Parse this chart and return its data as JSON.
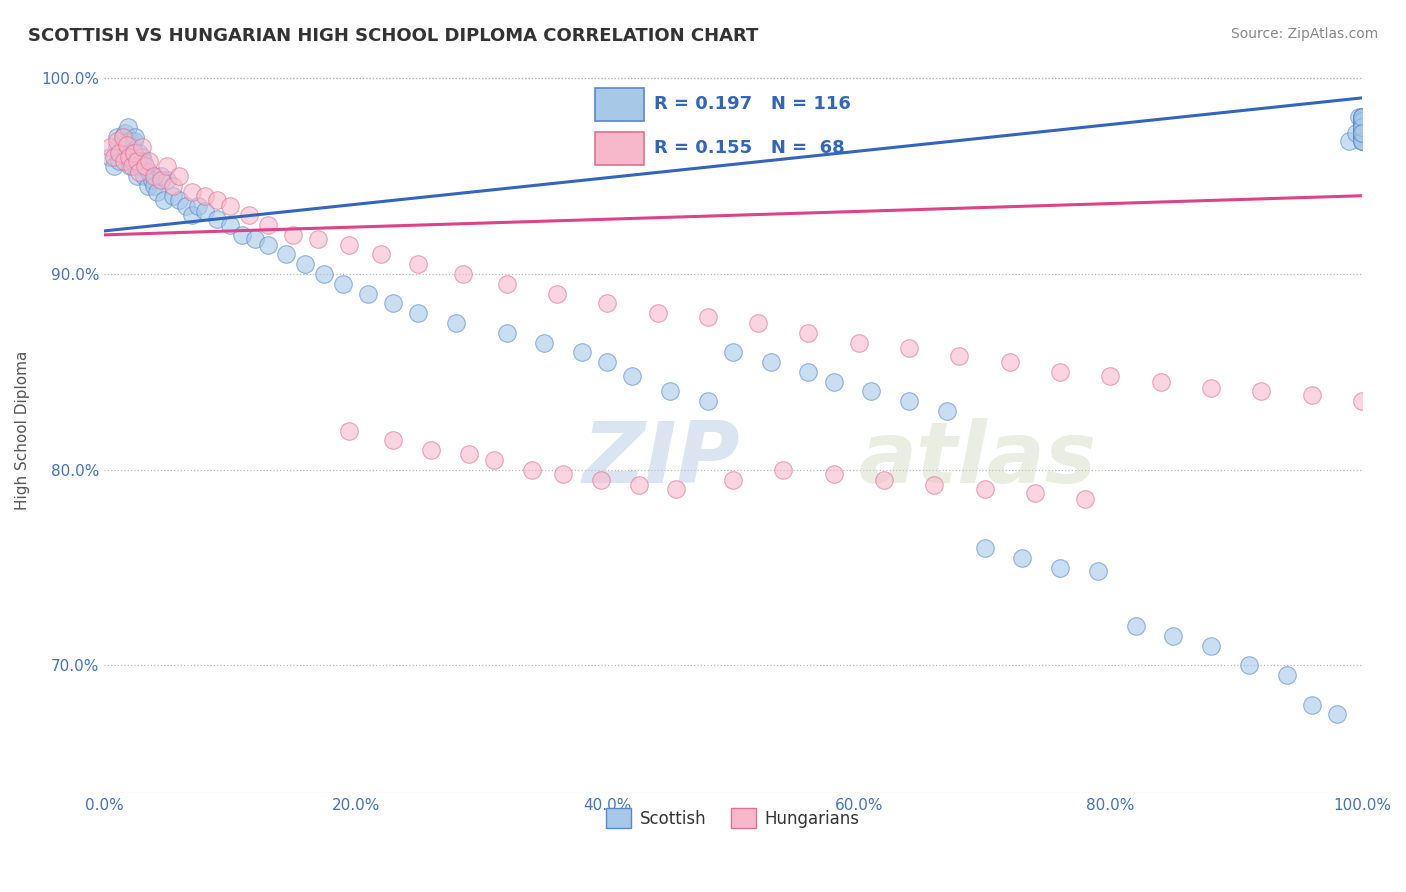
{
  "title": "SCOTTISH VS HUNGARIAN HIGH SCHOOL DIPLOMA CORRELATION CHART",
  "source": "Source: ZipAtlas.com",
  "ylabel": "High School Diploma",
  "xlim": [
    0.0,
    1.0
  ],
  "ylim": [
    0.635,
    1.005
  ],
  "xticks": [
    0.0,
    0.2,
    0.4,
    0.6,
    0.8,
    1.0
  ],
  "xticklabels": [
    "0.0%",
    "20.0%",
    "40.0%",
    "60.0%",
    "80.0%",
    "100.0%"
  ],
  "ytick_vals": [
    0.7,
    0.8,
    0.9,
    1.0
  ],
  "yticklabels": [
    "70.0%",
    "80.0%",
    "90.0%",
    "100.0%"
  ],
  "scottish_color": "#a8c8e8",
  "scottish_edge": "#5588cc",
  "hungarian_color": "#f8b8cc",
  "hungarian_edge": "#e07090",
  "trend_scottish_color": "#3366bb",
  "trend_hungarian_color": "#dd4488",
  "R_scottish": 0.197,
  "N_scottish": 116,
  "R_hungarian": 0.155,
  "N_hungarian": 68,
  "background_color": "#ffffff",
  "grid_color": "#bbbbbb",
  "watermark_zip": "ZIP",
  "watermark_atlas": "atlas",
  "legend_labels": [
    "Scottish",
    "Hungarians"
  ],
  "scottish_x": [
    0.005,
    0.008,
    0.01,
    0.01,
    0.012,
    0.013,
    0.015,
    0.015,
    0.016,
    0.017,
    0.018,
    0.018,
    0.019,
    0.02,
    0.02,
    0.021,
    0.021,
    0.022,
    0.022,
    0.023,
    0.023,
    0.024,
    0.025,
    0.025,
    0.026,
    0.027,
    0.028,
    0.029,
    0.03,
    0.031,
    0.032,
    0.033,
    0.035,
    0.036,
    0.038,
    0.04,
    0.042,
    0.045,
    0.048,
    0.05,
    0.055,
    0.06,
    0.065,
    0.07,
    0.075,
    0.08,
    0.09,
    0.1,
    0.11,
    0.12,
    0.13,
    0.145,
    0.16,
    0.175,
    0.19,
    0.21,
    0.23,
    0.25,
    0.28,
    0.32,
    0.35,
    0.38,
    0.4,
    0.42,
    0.45,
    0.48,
    0.5,
    0.53,
    0.56,
    0.58,
    0.61,
    0.64,
    0.67,
    0.7,
    0.73,
    0.76,
    0.79,
    0.82,
    0.85,
    0.88,
    0.91,
    0.94,
    0.96,
    0.98,
    0.99,
    0.995,
    0.998,
    1.0,
    1.0,
    1.0,
    1.0,
    1.0,
    1.0,
    1.0,
    1.0,
    1.0,
    1.0,
    1.0,
    1.0,
    1.0,
    1.0,
    1.0,
    1.0,
    1.0,
    1.0,
    1.0,
    1.0,
    1.0,
    1.0,
    1.0,
    1.0,
    1.0,
    1.0,
    1.0,
    1.0,
    1.0
  ],
  "scottish_y": [
    0.96,
    0.955,
    0.965,
    0.97,
    0.958,
    0.962,
    0.97,
    0.968,
    0.966,
    0.972,
    0.968,
    0.962,
    0.975,
    0.96,
    0.965,
    0.955,
    0.968,
    0.96,
    0.965,
    0.958,
    0.962,
    0.968,
    0.955,
    0.97,
    0.95,
    0.958,
    0.962,
    0.955,
    0.96,
    0.958,
    0.95,
    0.955,
    0.945,
    0.952,
    0.948,
    0.945,
    0.942,
    0.95,
    0.938,
    0.948,
    0.94,
    0.938,
    0.935,
    0.93,
    0.935,
    0.932,
    0.928,
    0.925,
    0.92,
    0.918,
    0.915,
    0.91,
    0.905,
    0.9,
    0.895,
    0.89,
    0.885,
    0.88,
    0.875,
    0.87,
    0.865,
    0.86,
    0.855,
    0.848,
    0.84,
    0.835,
    0.86,
    0.855,
    0.85,
    0.845,
    0.84,
    0.835,
    0.83,
    0.76,
    0.755,
    0.75,
    0.748,
    0.72,
    0.715,
    0.71,
    0.7,
    0.695,
    0.68,
    0.675,
    0.968,
    0.972,
    0.98,
    0.975,
    0.97,
    0.978,
    0.972,
    0.976,
    0.98,
    0.974,
    0.972,
    0.978,
    0.98,
    0.975,
    0.972,
    0.97,
    0.975,
    0.978,
    0.972,
    0.968,
    0.975,
    0.98,
    0.972,
    0.975,
    0.968,
    0.975,
    0.978,
    0.972,
    0.968,
    0.975,
    0.98,
    0.972
  ],
  "hungarian_x": [
    0.005,
    0.008,
    0.01,
    0.012,
    0.015,
    0.016,
    0.018,
    0.02,
    0.022,
    0.024,
    0.026,
    0.028,
    0.03,
    0.033,
    0.036,
    0.04,
    0.045,
    0.05,
    0.055,
    0.06,
    0.07,
    0.08,
    0.09,
    0.1,
    0.115,
    0.13,
    0.15,
    0.17,
    0.195,
    0.22,
    0.25,
    0.285,
    0.32,
    0.36,
    0.4,
    0.44,
    0.48,
    0.52,
    0.56,
    0.6,
    0.64,
    0.68,
    0.72,
    0.76,
    0.8,
    0.84,
    0.88,
    0.92,
    0.96,
    1.0,
    0.195,
    0.23,
    0.26,
    0.29,
    0.31,
    0.34,
    0.365,
    0.395,
    0.425,
    0.455,
    0.5,
    0.54,
    0.58,
    0.62,
    0.66,
    0.7,
    0.74,
    0.78
  ],
  "hungarian_y": [
    0.965,
    0.96,
    0.968,
    0.962,
    0.97,
    0.958,
    0.966,
    0.96,
    0.955,
    0.962,
    0.958,
    0.952,
    0.965,
    0.955,
    0.958,
    0.95,
    0.948,
    0.955,
    0.945,
    0.95,
    0.942,
    0.94,
    0.938,
    0.935,
    0.93,
    0.925,
    0.92,
    0.918,
    0.915,
    0.91,
    0.905,
    0.9,
    0.895,
    0.89,
    0.885,
    0.88,
    0.878,
    0.875,
    0.87,
    0.865,
    0.862,
    0.858,
    0.855,
    0.85,
    0.848,
    0.845,
    0.842,
    0.84,
    0.838,
    0.835,
    0.82,
    0.815,
    0.81,
    0.808,
    0.805,
    0.8,
    0.798,
    0.795,
    0.792,
    0.79,
    0.795,
    0.8,
    0.798,
    0.795,
    0.792,
    0.79,
    0.788,
    0.785
  ]
}
